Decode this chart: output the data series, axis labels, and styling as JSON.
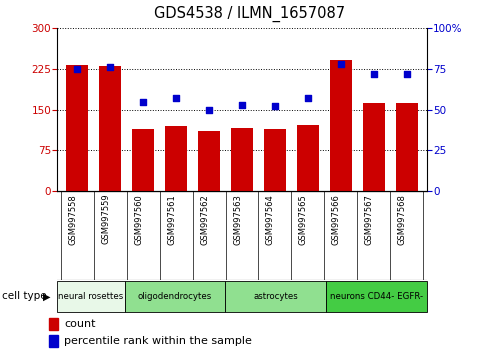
{
  "title": "GDS4538 / ILMN_1657087",
  "samples": [
    "GSM997558",
    "GSM997559",
    "GSM997560",
    "GSM997561",
    "GSM997562",
    "GSM997563",
    "GSM997564",
    "GSM997565",
    "GSM997566",
    "GSM997567",
    "GSM997568"
  ],
  "counts": [
    232,
    230,
    115,
    120,
    110,
    116,
    114,
    122,
    242,
    163,
    163
  ],
  "percentiles": [
    75,
    76,
    55,
    57,
    50,
    53,
    52,
    57,
    78,
    72,
    72
  ],
  "bar_color": "#cc0000",
  "dot_color": "#0000cc",
  "left_yticks": [
    0,
    75,
    150,
    225,
    300
  ],
  "right_yticks": [
    0,
    25,
    50,
    75,
    100
  ],
  "ylim_left": [
    0,
    300
  ],
  "ylim_right": [
    0,
    100
  ],
  "cell_types": [
    {
      "label": "neural rosettes",
      "start": 0,
      "end": 2,
      "color": "#e8f8e8"
    },
    {
      "label": "oligodendrocytes",
      "start": 2,
      "end": 5,
      "color": "#90e090"
    },
    {
      "label": "astrocytes",
      "start": 5,
      "end": 8,
      "color": "#90e090"
    },
    {
      "label": "neurons CD44- EGFR-",
      "start": 8,
      "end": 11,
      "color": "#44cc44"
    }
  ],
  "legend_count_label": "count",
  "legend_pct_label": "percentile rank within the sample",
  "cell_type_label": "cell type",
  "bg_color": "#ffffff",
  "label_box_color": "#c8c8c8",
  "grid_color": "#000000"
}
